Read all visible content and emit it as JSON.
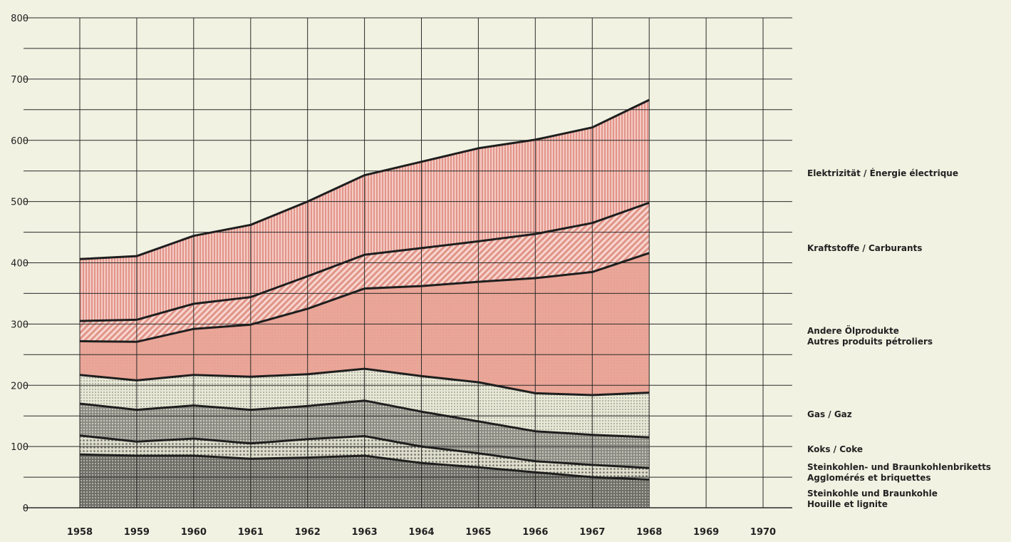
{
  "colors": {
    "background": "#f1f2e2",
    "grid": "#2a2a2a",
    "elektrizitaet": "#e8a79d",
    "kraftstoffe": "#e4a196",
    "andere_oel": "#e7a396",
    "gas": "#dcdcc8",
    "koks": "#9e9e97",
    "briketts": "#d4d4c4",
    "steinkohle": "#86867e"
  },
  "chart_data": {
    "type": "area",
    "stacked": true,
    "x": [
      1958,
      1959,
      1960,
      1961,
      1962,
      1963,
      1964,
      1965,
      1966,
      1967,
      1968
    ],
    "x_ticks": [
      "1958",
      "1959",
      "1960",
      "1961",
      "1962",
      "1963",
      "1964",
      "1965",
      "1966",
      "1967",
      "1968",
      "1969",
      "1970"
    ],
    "xlim": [
      1958,
      1970
    ],
    "y_ticks": [
      "0",
      "100",
      "200",
      "300",
      "400",
      "500",
      "600",
      "700",
      "800"
    ],
    "ylim": [
      0,
      800
    ],
    "grid": true,
    "legend_position": "right",
    "series": [
      {
        "key": "steinkohle",
        "name": "Steinkohle und Braunkohle",
        "name2": "Houille et lignite",
        "cumulative": [
          87,
          85,
          85,
          80,
          82,
          85,
          73,
          66,
          58,
          50,
          46
        ]
      },
      {
        "key": "briketts",
        "name": "Steinkohlen- und Braunkohlenbriketts",
        "name2": "Agglomérés et briquettes",
        "cumulative": [
          118,
          108,
          113,
          105,
          112,
          117,
          100,
          89,
          76,
          70,
          65
        ]
      },
      {
        "key": "koks",
        "name": "Koks / Coke",
        "name2": "",
        "cumulative": [
          170,
          160,
          167,
          160,
          166,
          175,
          157,
          141,
          125,
          119,
          115
        ]
      },
      {
        "key": "gas",
        "name": "Gas / Gaz",
        "name2": "",
        "cumulative": [
          217,
          208,
          217,
          214,
          218,
          227,
          215,
          205,
          187,
          184,
          188
        ]
      },
      {
        "key": "andere_oel",
        "name": "Andere Ölprodukte",
        "name2": "Autres produits pétroliers",
        "cumulative": [
          272,
          271,
          292,
          299,
          325,
          358,
          362,
          369,
          375,
          385,
          416
        ]
      },
      {
        "key": "kraftstoffe",
        "name": "Kraftstoffe / Carburants",
        "name2": "",
        "cumulative": [
          305,
          307,
          333,
          344,
          378,
          413,
          424,
          435,
          447,
          465,
          498
        ]
      },
      {
        "key": "elektrizitaet",
        "name": "Elektrizität / Énergie électrique",
        "name2": "",
        "cumulative": [
          406,
          411,
          444,
          462,
          500,
          543,
          565,
          587,
          601,
          621,
          666
        ]
      }
    ]
  }
}
